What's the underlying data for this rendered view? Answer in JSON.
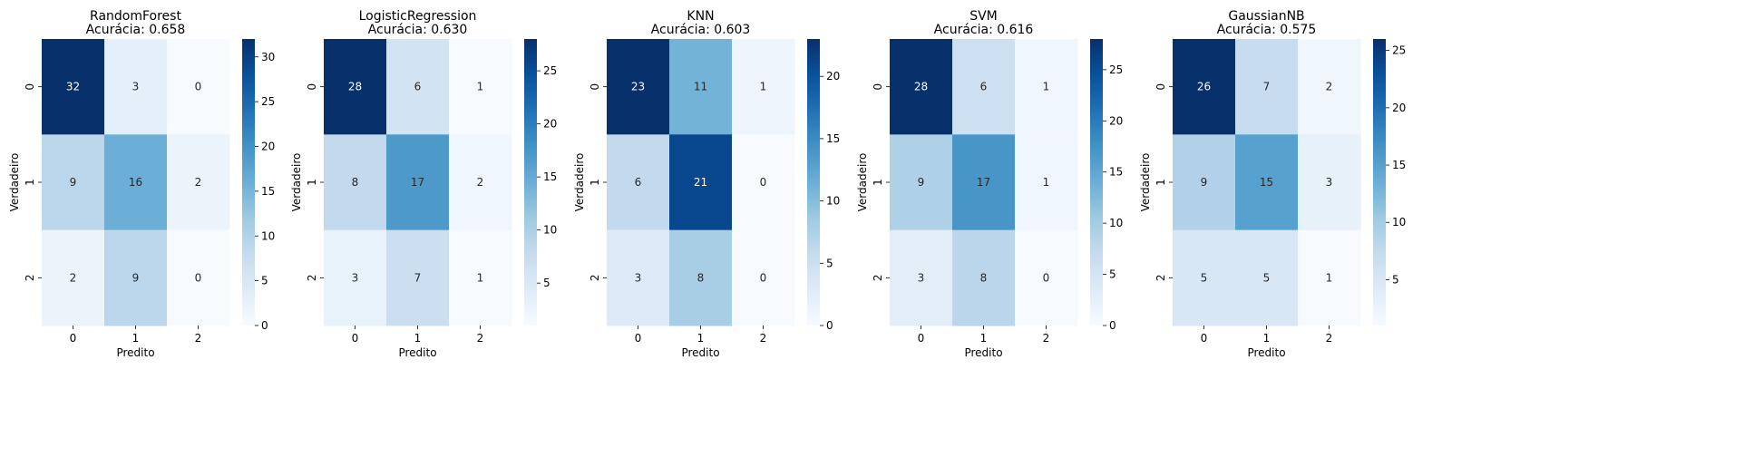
{
  "chart_data": [
    {
      "type": "heatmap",
      "title_line1": "RandomForest",
      "title_line2": "Acurácia: 0.658",
      "xlabel": "Predito",
      "ylabel": "Verdadeiro",
      "x_categories": [
        "0",
        "1",
        "2"
      ],
      "y_categories": [
        "0",
        "1",
        "2"
      ],
      "matrix": [
        [
          32,
          3,
          0
        ],
        [
          9,
          16,
          2
        ],
        [
          2,
          9,
          0
        ]
      ],
      "colorbar": {
        "min": 0,
        "max": 32,
        "ticks": [
          0,
          5,
          10,
          15,
          20,
          25,
          30
        ]
      }
    },
    {
      "type": "heatmap",
      "title_line1": "LogisticRegression",
      "title_line2": "Acurácia: 0.630",
      "xlabel": "Predito",
      "ylabel": "Verdadeiro",
      "x_categories": [
        "0",
        "1",
        "2"
      ],
      "y_categories": [
        "0",
        "1",
        "2"
      ],
      "matrix": [
        [
          28,
          6,
          1
        ],
        [
          8,
          17,
          2
        ],
        [
          3,
          7,
          1
        ]
      ],
      "colorbar": {
        "min": 1,
        "max": 28,
        "ticks": [
          5,
          10,
          15,
          20,
          25
        ]
      }
    },
    {
      "type": "heatmap",
      "title_line1": "KNN",
      "title_line2": "Acurácia: 0.603",
      "xlabel": "Predito",
      "ylabel": "Verdadeiro",
      "x_categories": [
        "0",
        "1",
        "2"
      ],
      "y_categories": [
        "0",
        "1",
        "2"
      ],
      "matrix": [
        [
          23,
          11,
          1
        ],
        [
          6,
          21,
          0
        ],
        [
          3,
          8,
          0
        ]
      ],
      "colorbar": {
        "min": 0,
        "max": 23,
        "ticks": [
          0,
          5,
          10,
          15,
          20
        ]
      }
    },
    {
      "type": "heatmap",
      "title_line1": "SVM",
      "title_line2": "Acurácia: 0.616",
      "xlabel": "Predito",
      "ylabel": "Verdadeiro",
      "x_categories": [
        "0",
        "1",
        "2"
      ],
      "y_categories": [
        "0",
        "1",
        "2"
      ],
      "matrix": [
        [
          28,
          6,
          1
        ],
        [
          9,
          17,
          1
        ],
        [
          3,
          8,
          0
        ]
      ],
      "colorbar": {
        "min": 0,
        "max": 28,
        "ticks": [
          0,
          5,
          10,
          15,
          20,
          25
        ]
      }
    },
    {
      "type": "heatmap",
      "title_line1": "GaussianNB",
      "title_line2": "Acurácia: 0.575",
      "xlabel": "Predito",
      "ylabel": "Verdadeiro",
      "x_categories": [
        "0",
        "1",
        "2"
      ],
      "y_categories": [
        "0",
        "1",
        "2"
      ],
      "matrix": [
        [
          26,
          7,
          2
        ],
        [
          9,
          15,
          3
        ],
        [
          5,
          5,
          1
        ]
      ],
      "colorbar": {
        "min": 1,
        "max": 26,
        "ticks": [
          5,
          10,
          15,
          20,
          25
        ]
      }
    }
  ],
  "colormap": {
    "name": "Blues",
    "stops": [
      "#f7fbff",
      "#deebf7",
      "#c6dbef",
      "#9ecae1",
      "#6baed6",
      "#4292c6",
      "#2171b5",
      "#08519c",
      "#08306b"
    ],
    "dark_text_color": "#ffffff",
    "light_text_color": "#262626"
  }
}
